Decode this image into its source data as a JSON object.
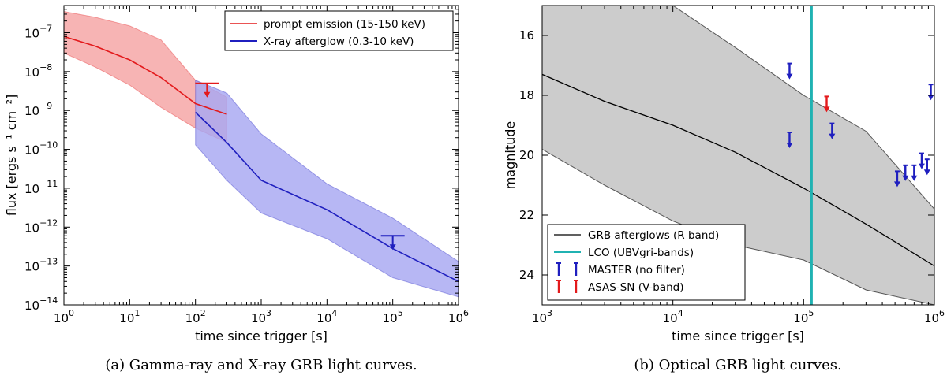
{
  "chart_data": [
    {
      "type": "line",
      "panel": "a",
      "caption": "(a) Gamma-ray and X-ray GRB light curves.",
      "xlabel": "time since trigger [s]",
      "ylabel": "flux [ergs s⁻¹ cm⁻²]",
      "xscale": "log",
      "yscale": "log",
      "xlim": [
        1,
        1000000
      ],
      "ylim": [
        1e-14,
        5e-07
      ],
      "xticks": [
        {
          "v": 1,
          "base": "10",
          "exp": "0"
        },
        {
          "v": 10,
          "base": "10",
          "exp": "1"
        },
        {
          "v": 100,
          "base": "10",
          "exp": "2"
        },
        {
          "v": 1000,
          "base": "10",
          "exp": "3"
        },
        {
          "v": 10000,
          "base": "10",
          "exp": "4"
        },
        {
          "v": 100000,
          "base": "10",
          "exp": "5"
        },
        {
          "v": 1000000,
          "base": "10",
          "exp": "6"
        }
      ],
      "yticks": [
        {
          "v": 1e-07,
          "base": "10",
          "exp": "−7"
        },
        {
          "v": 1e-08,
          "base": "10",
          "exp": "−8"
        },
        {
          "v": 1e-09,
          "base": "10",
          "exp": "−9"
        },
        {
          "v": 1e-10,
          "base": "10",
          "exp": "−10"
        },
        {
          "v": 1e-11,
          "base": "10",
          "exp": "−11"
        },
        {
          "v": 1e-12,
          "base": "10",
          "exp": "−12"
        },
        {
          "v": 1e-13,
          "base": "10",
          "exp": "−13"
        },
        {
          "v": 1e-14,
          "base": "10",
          "exp": "−14"
        }
      ],
      "legend_position": "top-right",
      "series": [
        {
          "name": "prompt emission (15-150 keV)",
          "color": "#e31a1c",
          "fill": "#f5a3a3",
          "x": [
            1,
            3,
            10,
            30,
            100,
            300
          ],
          "y": [
            8e-08,
            4.5e-08,
            2e-08,
            7e-09,
            1.5e-09,
            8e-10
          ],
          "upper": [
            3.5e-07,
            2.5e-07,
            1.5e-07,
            6.5e-08,
            6e-09,
            2.2e-09
          ],
          "lower": [
            3e-08,
            1.3e-08,
            4.5e-09,
            1.2e-09,
            3.5e-10,
            1.5e-10
          ],
          "upper_limits": [
            {
              "x": 150,
              "y": 5e-09
            }
          ]
        },
        {
          "name": "X-ray afterglow (0.3-10 keV)",
          "color": "#1f1fbf",
          "fill": "#a7a7f2",
          "x": [
            100,
            300,
            1000,
            10000,
            100000,
            1000000
          ],
          "y": [
            9e-10,
            1.5e-10,
            1.6e-11,
            2.8e-12,
            2.8e-13,
            4e-14
          ],
          "upper": [
            6e-09,
            2.8e-09,
            2.5e-10,
            1.3e-11,
            1.7e-12,
            1.3e-13
          ],
          "lower": [
            1.3e-10,
            1.6e-11,
            2.3e-12,
            5e-13,
            5e-14,
            1.6e-14
          ],
          "upper_limits": [
            {
              "x": 100000,
              "y": 6e-13
            }
          ]
        }
      ]
    },
    {
      "type": "line",
      "panel": "b",
      "caption": "(b) Optical GRB light curves.",
      "xlabel": "time since trigger [s]",
      "ylabel": "magnitude",
      "xscale": "log",
      "yscale": "linear",
      "yinverted": true,
      "xlim": [
        1000,
        1000000
      ],
      "ylim": [
        15,
        25
      ],
      "xticks": [
        {
          "v": 1000,
          "base": "10",
          "exp": "3"
        },
        {
          "v": 10000,
          "base": "10",
          "exp": "4"
        },
        {
          "v": 100000,
          "base": "10",
          "exp": "5"
        },
        {
          "v": 1000000,
          "base": "10",
          "exp": "6"
        }
      ],
      "yticks": [
        16,
        18,
        20,
        22,
        24
      ],
      "legend_position": "bottom-left",
      "series": [
        {
          "name": "GRB afterglows (R band)",
          "color": "#000000",
          "fill": "#cccccc",
          "x": [
            1000,
            3000,
            10000,
            30000,
            100000,
            300000,
            1000000
          ],
          "y": [
            17.3,
            18.2,
            19.0,
            19.9,
            21.1,
            22.3,
            23.7
          ],
          "bright_edge": [
            15.0,
            15.0,
            15.0,
            16.4,
            18.0,
            19.2,
            21.8
          ],
          "faint_edge": [
            19.8,
            21.0,
            22.2,
            23.0,
            23.5,
            24.5,
            25.0
          ]
        },
        {
          "name": "LCO (UBVgri-bands)",
          "color": "#20b2b2",
          "vline_x": 115000
        },
        {
          "name": "MASTER (no filter)",
          "color": "#1f1fbf",
          "upper_limits": [
            {
              "x": 78000,
              "y": 17.2
            },
            {
              "x": 78000,
              "y": 19.5
            },
            {
              "x": 165000,
              "y": 19.2
            },
            {
              "x": 520000,
              "y": 20.8
            },
            {
              "x": 600000,
              "y": 20.6
            },
            {
              "x": 700000,
              "y": 20.6
            },
            {
              "x": 800000,
              "y": 20.2
            },
            {
              "x": 880000,
              "y": 20.4
            },
            {
              "x": 940000,
              "y": 17.9
            }
          ]
        },
        {
          "name": "ASAS-SN (V-band)",
          "color": "#e31a1c",
          "upper_limits": [
            {
              "x": 150000,
              "y": 18.3
            }
          ]
        }
      ]
    }
  ]
}
